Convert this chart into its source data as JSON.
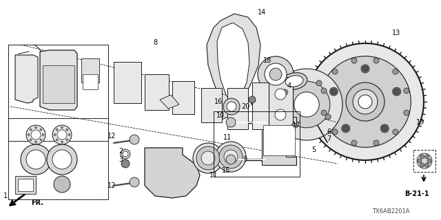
{
  "background_color": "#ffffff",
  "diagram_code": "TX6AB2201A",
  "ref_label": "B-21-1",
  "line_color": "#1a1a1a",
  "figsize": [
    6.4,
    3.2
  ],
  "dpi": 100
}
